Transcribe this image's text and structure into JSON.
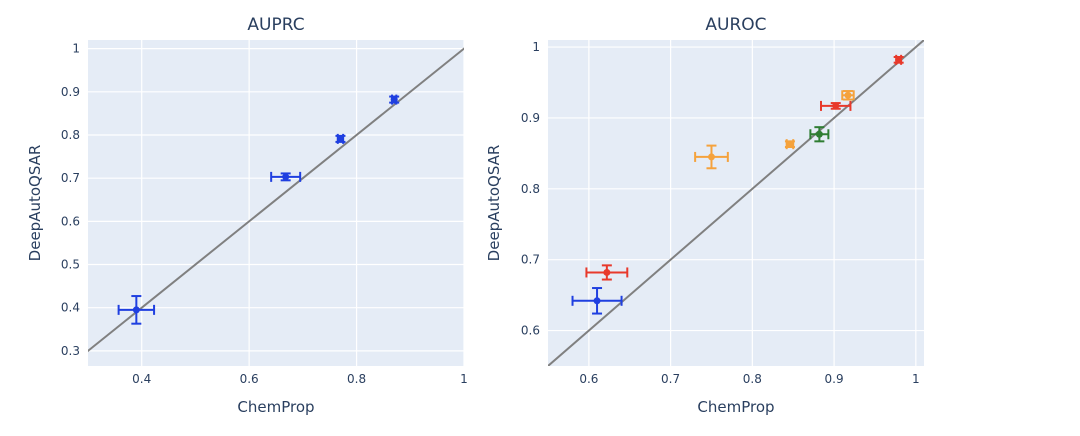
{
  "chart_data": [
    {
      "type": "scatter",
      "title": "AUPRC",
      "xlabel": "ChemProp",
      "ylabel": "DeepAutoQSAR",
      "xlim": [
        0.3,
        1.0
      ],
      "ylim": [
        0.265,
        1.02
      ],
      "xticks": [
        0.4,
        0.6,
        0.8,
        1.0
      ],
      "xtick_labels": [
        "0.4",
        "0.6",
        "0.8",
        "1"
      ],
      "yticks": [
        0.3,
        0.4,
        0.5,
        0.6,
        0.7,
        0.8,
        0.9,
        1.0
      ],
      "ytick_labels": [
        "0.3",
        "0.4",
        "0.5",
        "0.6",
        "0.7",
        "0.8",
        "0.9",
        "1"
      ],
      "diagonal": true,
      "points": [
        {
          "x": 0.39,
          "y": 0.395,
          "xerr": 0.033,
          "yerr": 0.032,
          "color": "#1f3fe0"
        },
        {
          "x": 0.668,
          "y": 0.703,
          "xerr": 0.027,
          "yerr": 0.008,
          "color": "#1f3fe0"
        },
        {
          "x": 0.77,
          "y": 0.791,
          "xerr": 0.005,
          "yerr": 0.007,
          "color": "#1f3fe0"
        },
        {
          "x": 0.87,
          "y": 0.882,
          "xerr": 0.004,
          "yerr": 0.007,
          "color": "#1f3fe0"
        }
      ]
    },
    {
      "type": "scatter",
      "title": "AUROC",
      "xlabel": "ChemProp",
      "ylabel": "DeepAutoQSAR",
      "xlim": [
        0.55,
        1.01
      ],
      "ylim": [
        0.55,
        1.01
      ],
      "xticks": [
        0.6,
        0.7,
        0.8,
        0.9,
        1.0
      ],
      "xtick_labels": [
        "0.6",
        "0.7",
        "0.8",
        "0.9",
        "1"
      ],
      "yticks": [
        0.6,
        0.7,
        0.8,
        0.9,
        1.0
      ],
      "ytick_labels": [
        "0.6",
        "0.7",
        "0.8",
        "0.9",
        "1"
      ],
      "diagonal": true,
      "points": [
        {
          "x": 0.61,
          "y": 0.642,
          "xerr": 0.03,
          "yerr": 0.018,
          "color": "#1f3fe0"
        },
        {
          "x": 0.622,
          "y": 0.682,
          "xerr": 0.025,
          "yerr": 0.01,
          "color": "#e8392b"
        },
        {
          "x": 0.75,
          "y": 0.845,
          "xerr": 0.02,
          "yerr": 0.016,
          "color": "#f5a23c"
        },
        {
          "x": 0.846,
          "y": 0.863,
          "xerr": 0.004,
          "yerr": 0.004,
          "color": "#f5a23c"
        },
        {
          "x": 0.882,
          "y": 0.877,
          "xerr": 0.011,
          "yerr": 0.01,
          "color": "#2e7d32"
        },
        {
          "x": 0.902,
          "y": 0.917,
          "xerr": 0.018,
          "yerr": 0.004,
          "color": "#e8392b"
        },
        {
          "x": 0.917,
          "y": 0.932,
          "xerr": 0.007,
          "yerr": 0.006,
          "color": "#f5a23c"
        },
        {
          "x": 0.979,
          "y": 0.982,
          "xerr": 0.003,
          "yerr": 0.004,
          "color": "#e8392b"
        }
      ]
    }
  ]
}
